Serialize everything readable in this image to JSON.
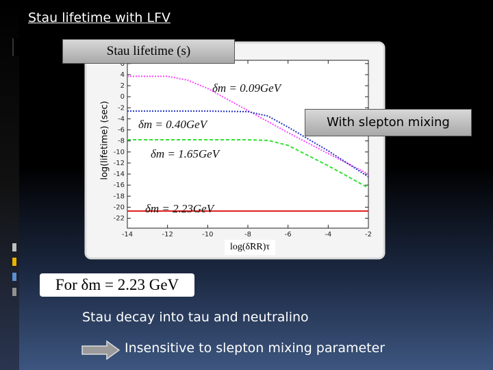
{
  "slide": {
    "title": "Stau lifetime with LFV",
    "chart_caption": "Stau lifetime (s)",
    "mixing_note": "With slepton mixing",
    "condition": "For δm = 2.23 GeV",
    "point": "Stau decay into tau and neutralino",
    "conclusion": "Insensitive to slepton mixing parameter"
  },
  "chart_data": {
    "type": "line",
    "x_label": "log(δ̃RR)τ",
    "y_label": "log(lifetime) (sec)",
    "x": [
      -14,
      -12,
      -11,
      -10,
      -8,
      -7,
      -6,
      -4,
      -2
    ],
    "series": [
      {
        "name": "δm = 0.09GeV",
        "color": "#ff40ff",
        "dash": "dotted",
        "values": [
          3.7,
          3.7,
          3.0,
          1.5,
          -2.5,
          -4.5,
          -6.5,
          -10.3,
          -14.0
        ]
      },
      {
        "name": "δm = 0.40GeV",
        "color": "#2030c0",
        "dash": "dotted",
        "values": [
          -2.6,
          -2.6,
          -2.6,
          -2.6,
          -2.7,
          -3.5,
          -5.5,
          -9.8,
          -14.5
        ]
      },
      {
        "name": "δm = 1.65GeV",
        "color": "#30e030",
        "dash": "dashed",
        "values": [
          -7.8,
          -7.8,
          -7.8,
          -7.8,
          -7.8,
          -7.9,
          -8.8,
          -12.5,
          -16.5
        ]
      },
      {
        "name": "δm = 2.23GeV",
        "color": "#e02020",
        "dash": "solid",
        "values": [
          -20.7,
          -20.7,
          -20.7,
          -20.7,
          -20.7,
          -20.7,
          -20.7,
          -20.7,
          -20.7
        ]
      }
    ],
    "xlim": [
      -14,
      -2
    ],
    "xticks": [
      -14,
      -12,
      -10,
      -8,
      -6,
      -4,
      -2
    ],
    "ylim": [
      -23.8,
      6.6
    ],
    "yticks": [
      6,
      4,
      2,
      0,
      -2,
      -4,
      -6,
      -8,
      -10,
      -12,
      -14,
      -16,
      -18,
      -20,
      -22
    ],
    "grid": false
  }
}
